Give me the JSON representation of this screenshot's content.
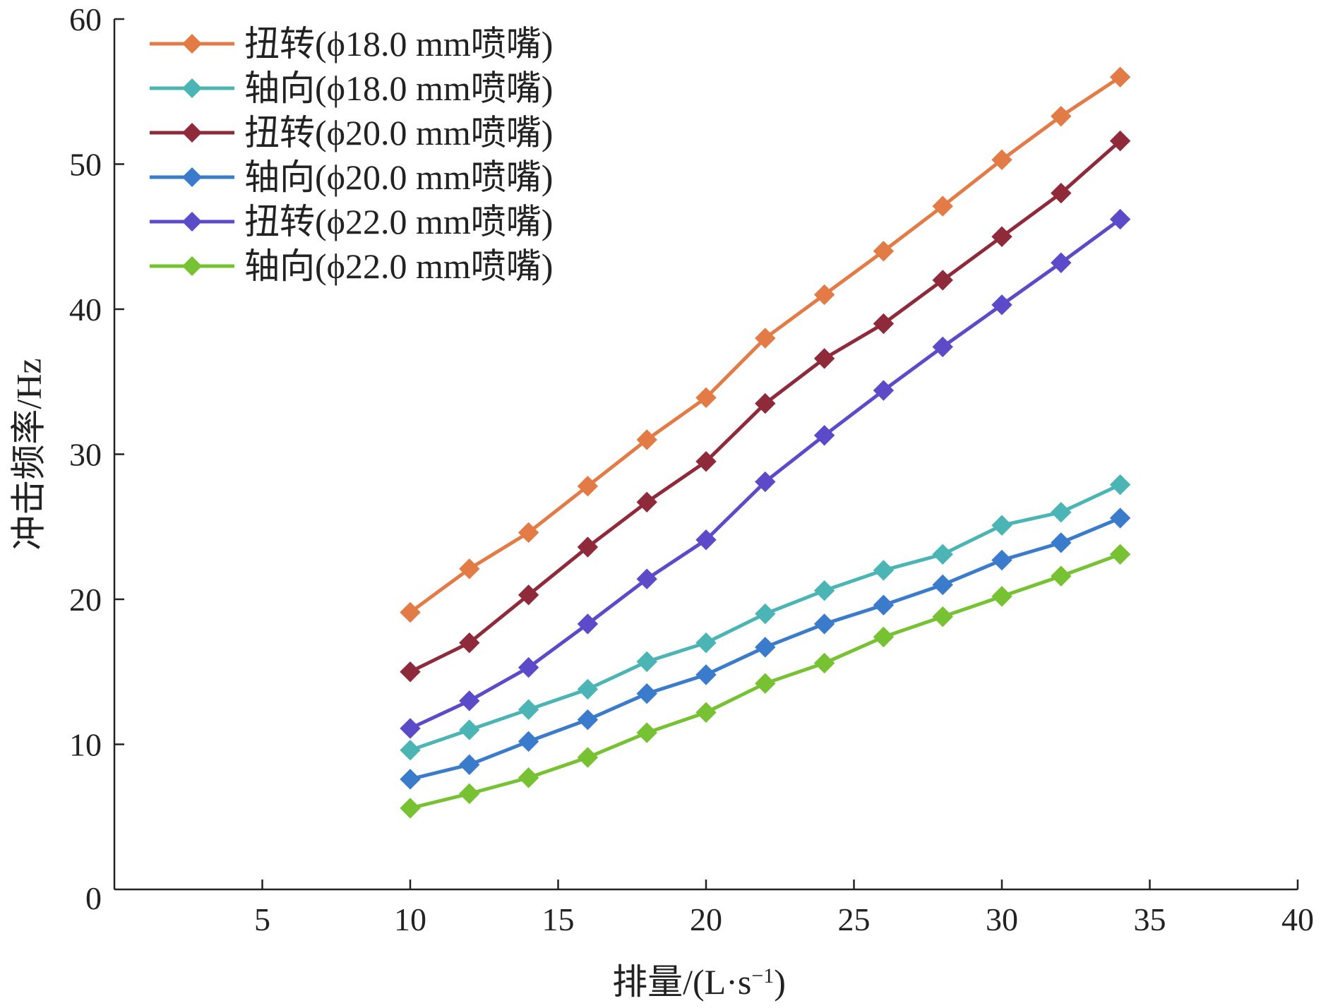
{
  "chart_data": {
    "type": "line",
    "xlabel": "排量/(L·s",
    "xlabel_sup": "−1",
    "xlabel_end": ")",
    "ylabel": "冲击频率/Hz",
    "xlim": [
      0,
      40
    ],
    "ylim": [
      0,
      60
    ],
    "x_ticks": [
      5,
      10,
      15,
      20,
      25,
      30,
      35,
      40
    ],
    "y_ticks": [
      0,
      10,
      20,
      30,
      40,
      50,
      60
    ],
    "grid": false,
    "legend_position": "top-left",
    "x": [
      10,
      12,
      14,
      16,
      18,
      20,
      22,
      24,
      26,
      28,
      30,
      32,
      34
    ],
    "series": [
      {
        "name": "扭转(ϕ18.0 mm喷嘴)",
        "color": "#E27B45",
        "values": [
          19.1,
          22.1,
          24.6,
          27.8,
          31.0,
          33.9,
          38.0,
          41.0,
          44.0,
          47.1,
          50.3,
          53.3,
          56.0
        ]
      },
      {
        "name": "轴向(ϕ18.0 mm喷嘴)",
        "color": "#4BB5B5",
        "values": [
          9.6,
          11.0,
          12.4,
          13.8,
          15.7,
          17.0,
          19.0,
          20.6,
          22.0,
          23.1,
          25.1,
          26.0,
          27.9
        ]
      },
      {
        "name": "扭转(ϕ20.0 mm喷嘴)",
        "color": "#8E2A3A",
        "values": [
          15.0,
          17.0,
          20.3,
          23.6,
          26.7,
          29.5,
          33.5,
          36.6,
          39.0,
          42.0,
          45.0,
          48.0,
          51.6
        ]
      },
      {
        "name": "轴向(ϕ20.0 mm喷嘴)",
        "color": "#3A7BCB",
        "values": [
          7.6,
          8.6,
          10.2,
          11.7,
          13.5,
          14.8,
          16.7,
          18.3,
          19.6,
          21.0,
          22.7,
          23.9,
          25.6
        ]
      },
      {
        "name": "扭转(ϕ22.0 mm喷嘴)",
        "color": "#5C4BC9",
        "values": [
          11.1,
          13.0,
          15.3,
          18.3,
          21.4,
          24.1,
          28.1,
          31.3,
          34.4,
          37.4,
          40.3,
          43.2,
          46.2
        ]
      },
      {
        "name": "轴向(ϕ22.0 mm喷嘴)",
        "color": "#77C232",
        "values": [
          5.6,
          6.6,
          7.7,
          9.1,
          10.8,
          12.2,
          14.2,
          15.6,
          17.4,
          18.8,
          20.2,
          21.6,
          23.1
        ]
      }
    ]
  }
}
